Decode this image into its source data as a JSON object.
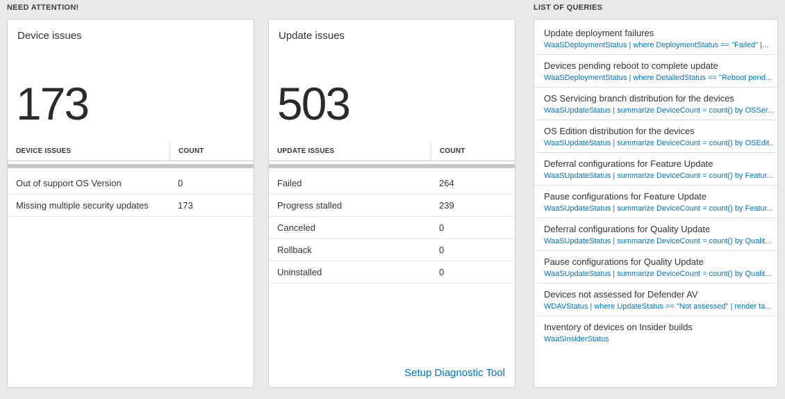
{
  "colors": {
    "accent_blue": "#0072c6",
    "page_background": "#e9e9e9",
    "card_background": "#ffffff",
    "text_dark": "#333333"
  },
  "need_attention": {
    "header": "NEED ATTENTION!",
    "cards": [
      {
        "title": "Device issues",
        "big_number": "173",
        "table": {
          "columns": [
            "DEVICE ISSUES",
            "COUNT"
          ],
          "rows": [
            {
              "label": "Out of support OS Version",
              "count": "0"
            },
            {
              "label": "Missing multiple security updates",
              "count": "173"
            }
          ]
        }
      },
      {
        "title": "Update issues",
        "big_number": "503",
        "table": {
          "columns": [
            "UPDATE ISSUES",
            "COUNT"
          ],
          "rows": [
            {
              "label": "Failed",
              "count": "264"
            },
            {
              "label": "Progress stalled",
              "count": "239"
            },
            {
              "label": "Canceled",
              "count": "0"
            },
            {
              "label": "Rollback",
              "count": "0"
            },
            {
              "label": "Uninstalled",
              "count": "0"
            }
          ]
        },
        "footer_link": "Setup Diagnostic Tool"
      }
    ]
  },
  "queries": {
    "header": "LIST OF QUERIES",
    "items": [
      {
        "title": "Update deployment failures",
        "query": "WaaSDeploymentStatus | where DeploymentStatus == \"Failed\" |..."
      },
      {
        "title": "Devices pending reboot to complete update",
        "query": "WaaSDeploymentStatus | where DetailedStatus == \"Reboot pend..."
      },
      {
        "title": "OS Servicing branch distribution for the devices",
        "query": "WaaSUpdateStatus | summarize DeviceCount = count() by OSSer..."
      },
      {
        "title": "OS Edition distribution for the devices",
        "query": "WaaSUpdateStatus | summarize DeviceCount = count() by OSEdit..."
      },
      {
        "title": "Deferral configurations for Feature Update",
        "query": "WaaSUpdateStatus | summarize DeviceCount = count() by Featur..."
      },
      {
        "title": "Pause configurations for Feature Update",
        "query": "WaaSUpdateStatus | summarize DeviceCount = count() by Featur..."
      },
      {
        "title": "Deferral configurations for Quality Update",
        "query": "WaaSUpdateStatus | summarize DeviceCount = count() by Qualit..."
      },
      {
        "title": "Pause configurations for Quality Update",
        "query": "WaaSUpdateStatus | summarize DeviceCount = count() by Qualit..."
      },
      {
        "title": "Devices not assessed for Defender AV",
        "query": "WDAVStatus | where UpdateStatus == \"Not assessed\" | render ta..."
      },
      {
        "title": "Inventory of devices on Insider builds",
        "query": "WaaSInsiderStatus"
      }
    ]
  }
}
